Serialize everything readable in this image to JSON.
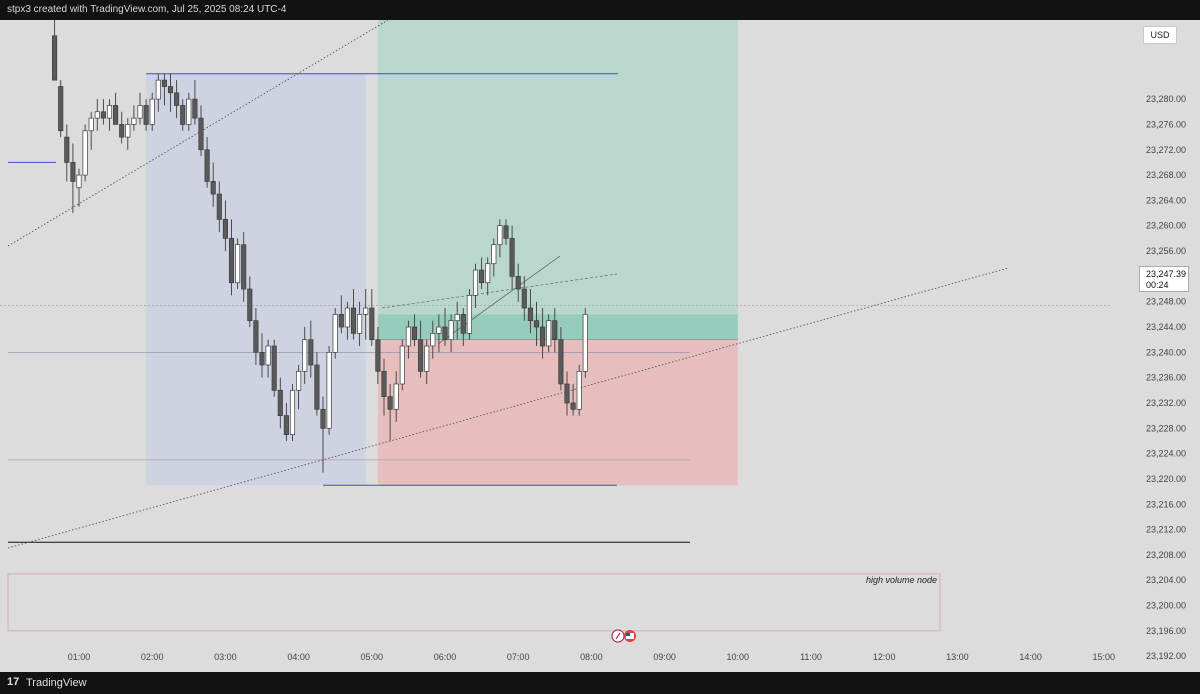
{
  "header": {
    "attribution": "stpx3 created with TradingView.com, Jul 25, 2025 08:24 UTC-4"
  },
  "footer": {
    "brand": "TradingView",
    "logo_glyph": "17"
  },
  "toolbar": {
    "currency": "USD"
  },
  "last_price": {
    "value": "23,247.39",
    "countdown": "00:24"
  },
  "annotations": {
    "hvn_label": "high volume node"
  },
  "colors": {
    "background": "#dcdcdc",
    "bull_candle": "#ffffff",
    "bear_candle": "#5a5a5a",
    "profit_zone": "#9fd4c3",
    "loss_zone": "#e9b4b4",
    "range_box": "#c9cfe3",
    "level_line": "#3a4bd6"
  },
  "chart_data": {
    "type": "candlestick",
    "title": "",
    "xlabel": "",
    "ylabel": "",
    "ylim": [
      23189.5,
      23292.5
    ],
    "y_ticks": [
      "23,280.00",
      "23,276.00",
      "23,272.00",
      "23,268.00",
      "23,264.00",
      "23,260.00",
      "23,256.00",
      "23,252.00",
      "23,248.00",
      "23,244.00",
      "23,240.00",
      "23,236.00",
      "23,232.00",
      "23,228.00",
      "23,224.00",
      "23,220.00",
      "23,216.00",
      "23,212.00",
      "23,208.00",
      "23,204.00",
      "23,200.00",
      "23,196.00",
      "23,192.00"
    ],
    "x_ticks": [
      "01:00",
      "02:00",
      "03:00",
      "04:00",
      "05:00",
      "06:00",
      "07:00",
      "08:00",
      "09:00",
      "10:00",
      "11:00",
      "12:00",
      "13:00",
      "14:00",
      "15:00"
    ],
    "candles": [
      {
        "t": "00:40",
        "o": 23290,
        "h": 23294,
        "l": 23283,
        "c": 23283
      },
      {
        "t": "00:45",
        "o": 23282,
        "h": 23283,
        "l": 23274,
        "c": 23275
      },
      {
        "t": "00:50",
        "o": 23274,
        "h": 23276,
        "l": 23267,
        "c": 23270
      },
      {
        "t": "00:55",
        "o": 23270,
        "h": 23273,
        "l": 23262,
        "c": 23267
      },
      {
        "t": "01:00",
        "o": 23266,
        "h": 23269,
        "l": 23263,
        "c": 23268
      },
      {
        "t": "01:05",
        "o": 23268,
        "h": 23276,
        "l": 23267,
        "c": 23275
      },
      {
        "t": "01:10",
        "o": 23275,
        "h": 23278,
        "l": 23272,
        "c": 23277
      },
      {
        "t": "01:15",
        "o": 23277,
        "h": 23280,
        "l": 23275,
        "c": 23278
      },
      {
        "t": "01:20",
        "o": 23278,
        "h": 23280,
        "l": 23276,
        "c": 23277
      },
      {
        "t": "01:25",
        "o": 23277,
        "h": 23280,
        "l": 23275,
        "c": 23279
      },
      {
        "t": "01:30",
        "o": 23279,
        "h": 23281,
        "l": 23276,
        "c": 23276
      },
      {
        "t": "01:35",
        "o": 23276,
        "h": 23278,
        "l": 23273,
        "c": 23274
      },
      {
        "t": "01:40",
        "o": 23274,
        "h": 23277,
        "l": 23272,
        "c": 23276
      },
      {
        "t": "01:45",
        "o": 23276,
        "h": 23279,
        "l": 23275,
        "c": 23277
      },
      {
        "t": "01:50",
        "o": 23277,
        "h": 23281,
        "l": 23276,
        "c": 23279
      },
      {
        "t": "01:55",
        "o": 23279,
        "h": 23280,
        "l": 23275,
        "c": 23276
      },
      {
        "t": "02:00",
        "o": 23276,
        "h": 23281,
        "l": 23275,
        "c": 23280
      },
      {
        "t": "02:05",
        "o": 23280,
        "h": 23284,
        "l": 23278,
        "c": 23283
      },
      {
        "t": "02:10",
        "o": 23283,
        "h": 23284,
        "l": 23279,
        "c": 23282
      },
      {
        "t": "02:15",
        "o": 23282,
        "h": 23284,
        "l": 23278,
        "c": 23281
      },
      {
        "t": "02:20",
        "o": 23281,
        "h": 23283,
        "l": 23277,
        "c": 23279
      },
      {
        "t": "02:25",
        "o": 23279,
        "h": 23280,
        "l": 23275,
        "c": 23276
      },
      {
        "t": "02:30",
        "o": 23276,
        "h": 23281,
        "l": 23275,
        "c": 23280
      },
      {
        "t": "02:35",
        "o": 23280,
        "h": 23283,
        "l": 23276,
        "c": 23277
      },
      {
        "t": "02:40",
        "o": 23277,
        "h": 23279,
        "l": 23271,
        "c": 23272
      },
      {
        "t": "02:45",
        "o": 23272,
        "h": 23274,
        "l": 23266,
        "c": 23267
      },
      {
        "t": "02:50",
        "o": 23267,
        "h": 23270,
        "l": 23263,
        "c": 23265
      },
      {
        "t": "02:55",
        "o": 23265,
        "h": 23267,
        "l": 23259,
        "c": 23261
      },
      {
        "t": "03:00",
        "o": 23261,
        "h": 23264,
        "l": 23256,
        "c": 23258
      },
      {
        "t": "03:05",
        "o": 23258,
        "h": 23261,
        "l": 23249,
        "c": 23251
      },
      {
        "t": "03:10",
        "o": 23251,
        "h": 23258,
        "l": 23250,
        "c": 23257
      },
      {
        "t": "03:15",
        "o": 23257,
        "h": 23259,
        "l": 23248,
        "c": 23250
      },
      {
        "t": "03:20",
        "o": 23250,
        "h": 23252,
        "l": 23244,
        "c": 23245
      },
      {
        "t": "03:25",
        "o": 23245,
        "h": 23247,
        "l": 23238,
        "c": 23240
      },
      {
        "t": "03:30",
        "o": 23240,
        "h": 23243,
        "l": 23236,
        "c": 23238
      },
      {
        "t": "03:35",
        "o": 23238,
        "h": 23242,
        "l": 23236,
        "c": 23241
      },
      {
        "t": "03:40",
        "o": 23241,
        "h": 23242,
        "l": 23233,
        "c": 23234
      },
      {
        "t": "03:45",
        "o": 23234,
        "h": 23236,
        "l": 23228,
        "c": 23230
      },
      {
        "t": "03:50",
        "o": 23230,
        "h": 23232,
        "l": 23226,
        "c": 23227
      },
      {
        "t": "03:55",
        "o": 23227,
        "h": 23235,
        "l": 23226,
        "c": 23234
      },
      {
        "t": "04:00",
        "o": 23234,
        "h": 23238,
        "l": 23231,
        "c": 23237
      },
      {
        "t": "04:05",
        "o": 23237,
        "h": 23244,
        "l": 23235,
        "c": 23242
      },
      {
        "t": "04:10",
        "o": 23242,
        "h": 23245,
        "l": 23236,
        "c": 23238
      },
      {
        "t": "04:15",
        "o": 23238,
        "h": 23240,
        "l": 23230,
        "c": 23231
      },
      {
        "t": "04:20",
        "o": 23231,
        "h": 23233,
        "l": 23221,
        "c": 23228
      },
      {
        "t": "04:25",
        "o": 23228,
        "h": 23241,
        "l": 23227,
        "c": 23240
      },
      {
        "t": "04:30",
        "o": 23240,
        "h": 23247,
        "l": 23239,
        "c": 23246
      },
      {
        "t": "04:35",
        "o": 23246,
        "h": 23249,
        "l": 23243,
        "c": 23244
      },
      {
        "t": "04:40",
        "o": 23244,
        "h": 23248,
        "l": 23242,
        "c": 23247
      },
      {
        "t": "04:45",
        "o": 23247,
        "h": 23250,
        "l": 23242,
        "c": 23243
      },
      {
        "t": "04:50",
        "o": 23243,
        "h": 23248,
        "l": 23241,
        "c": 23246
      },
      {
        "t": "04:55",
        "o": 23246,
        "h": 23250,
        "l": 23242,
        "c": 23247
      },
      {
        "t": "05:00",
        "o": 23247,
        "h": 23250,
        "l": 23241,
        "c": 23242
      },
      {
        "t": "05:05",
        "o": 23242,
        "h": 23244,
        "l": 23235,
        "c": 23237
      },
      {
        "t": "05:10",
        "o": 23237,
        "h": 23239,
        "l": 23230,
        "c": 23233
      },
      {
        "t": "05:15",
        "o": 23233,
        "h": 23235,
        "l": 23226,
        "c": 23231
      },
      {
        "t": "05:20",
        "o": 23231,
        "h": 23237,
        "l": 23229,
        "c": 23235
      },
      {
        "t": "05:25",
        "o": 23235,
        "h": 23242,
        "l": 23234,
        "c": 23241
      },
      {
        "t": "05:30",
        "o": 23241,
        "h": 23245,
        "l": 23239,
        "c": 23244
      },
      {
        "t": "05:35",
        "o": 23244,
        "h": 23246,
        "l": 23241,
        "c": 23242
      },
      {
        "t": "05:40",
        "o": 23242,
        "h": 23245,
        "l": 23236,
        "c": 23237
      },
      {
        "t": "05:45",
        "o": 23237,
        "h": 23242,
        "l": 23235,
        "c": 23241
      },
      {
        "t": "05:50",
        "o": 23241,
        "h": 23245,
        "l": 23239,
        "c": 23243
      },
      {
        "t": "05:55",
        "o": 23243,
        "h": 23246,
        "l": 23240,
        "c": 23244
      },
      {
        "t": "06:00",
        "o": 23244,
        "h": 23247,
        "l": 23241,
        "c": 23242
      },
      {
        "t": "06:05",
        "o": 23242,
        "h": 23246,
        "l": 23240,
        "c": 23245
      },
      {
        "t": "06:10",
        "o": 23245,
        "h": 23248,
        "l": 23242,
        "c": 23246
      },
      {
        "t": "06:15",
        "o": 23246,
        "h": 23247,
        "l": 23241,
        "c": 23243
      },
      {
        "t": "06:20",
        "o": 23243,
        "h": 23250,
        "l": 23242,
        "c": 23249
      },
      {
        "t": "06:25",
        "o": 23249,
        "h": 23254,
        "l": 23247,
        "c": 23253
      },
      {
        "t": "06:30",
        "o": 23253,
        "h": 23255,
        "l": 23250,
        "c": 23251
      },
      {
        "t": "06:35",
        "o": 23251,
        "h": 23255,
        "l": 23249,
        "c": 23254
      },
      {
        "t": "06:40",
        "o": 23254,
        "h": 23258,
        "l": 23252,
        "c": 23257
      },
      {
        "t": "06:45",
        "o": 23257,
        "h": 23261,
        "l": 23255,
        "c": 23260
      },
      {
        "t": "06:50",
        "o": 23260,
        "h": 23261,
        "l": 23257,
        "c": 23258
      },
      {
        "t": "06:55",
        "o": 23258,
        "h": 23260,
        "l": 23250,
        "c": 23252
      },
      {
        "t": "07:00",
        "o": 23252,
        "h": 23254,
        "l": 23248,
        "c": 23250
      },
      {
        "t": "07:05",
        "o": 23250,
        "h": 23252,
        "l": 23245,
        "c": 23247
      },
      {
        "t": "07:10",
        "o": 23247,
        "h": 23250,
        "l": 23243,
        "c": 23245
      },
      {
        "t": "07:15",
        "o": 23245,
        "h": 23248,
        "l": 23241,
        "c": 23244
      },
      {
        "t": "07:20",
        "o": 23244,
        "h": 23247,
        "l": 23239,
        "c": 23241
      },
      {
        "t": "07:25",
        "o": 23241,
        "h": 23246,
        "l": 23240,
        "c": 23245
      },
      {
        "t": "07:30",
        "o": 23245,
        "h": 23247,
        "l": 23240,
        "c": 23242
      },
      {
        "t": "07:35",
        "o": 23242,
        "h": 23244,
        "l": 23234,
        "c": 23235
      },
      {
        "t": "07:40",
        "o": 23235,
        "h": 23237,
        "l": 23230,
        "c": 23232
      },
      {
        "t": "07:45",
        "o": 23232,
        "h": 23235,
        "l": 23230,
        "c": 23231
      },
      {
        "t": "07:50",
        "o": 23231,
        "h": 23238,
        "l": 23230,
        "c": 23237
      },
      {
        "t": "07:55",
        "o": 23237,
        "h": 23247,
        "l": 23236,
        "c": 23246
      }
    ],
    "drawings": {
      "range_box": {
        "t_start": "01:55",
        "t_end": "04:55",
        "price_high": 23284,
        "price_low": 23219
      },
      "long_position": {
        "t_start": "05:05",
        "t_end": "10:00",
        "entry": 23242,
        "target": 23292.5,
        "stop": 23219
      },
      "horizontal_levels": [
        23284,
        23270,
        23240,
        23223,
        23219,
        23210
      ],
      "high_volume_node": {
        "price_high": 23205,
        "price_low": 23196
      }
    }
  }
}
